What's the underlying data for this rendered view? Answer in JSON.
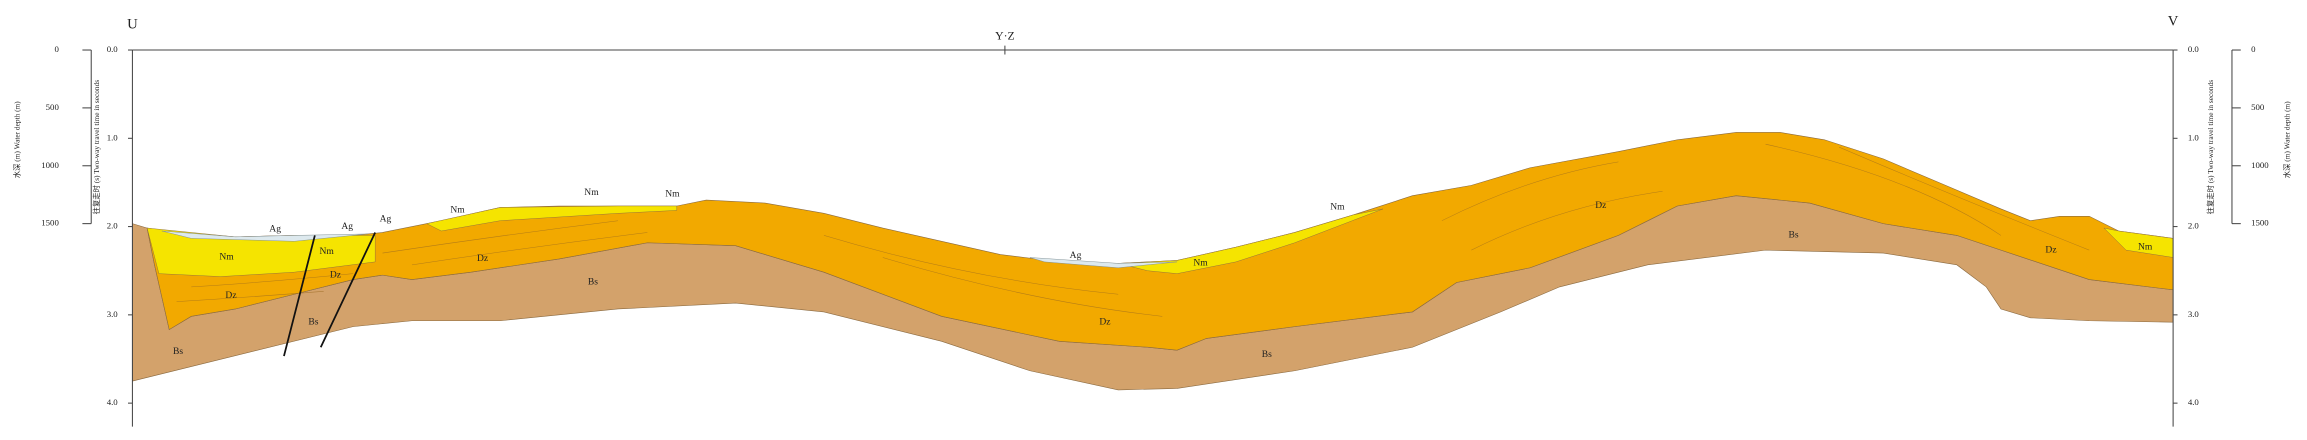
{
  "header": {
    "left": "U",
    "right": "V",
    "center": "Y·Z"
  },
  "twt_axis": {
    "title": "往复走时 (s)  Two-way travel time in seconds",
    "ticks": [
      {
        "value": 0,
        "label": "0.0"
      },
      {
        "value": 1,
        "label": "1.0"
      },
      {
        "value": 2,
        "label": "2.0"
      },
      {
        "value": 3,
        "label": "3.0"
      },
      {
        "value": 4,
        "label": "4.0"
      }
    ]
  },
  "depth_axis": {
    "title": "水深 (m)  Water depth (m)",
    "ticks": [
      0,
      500,
      1000,
      1500
    ]
  },
  "units": [
    "Ag",
    "Ag",
    "Ag",
    "Nm",
    "Nm",
    "Nm",
    "Nm",
    "Nm",
    "Dz",
    "Dz",
    "Dz",
    "Bs",
    "Bs",
    "Bs",
    "Ag",
    "Nm",
    "Nm",
    "Dz",
    "Dz",
    "Bs",
    "Bs",
    "Nm",
    "Dz"
  ]
}
